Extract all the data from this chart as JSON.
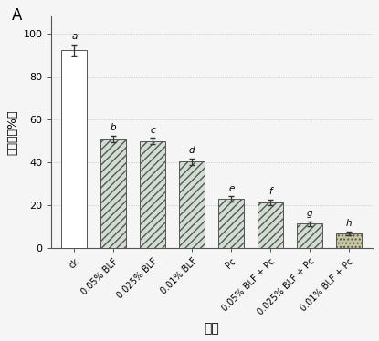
{
  "categories": [
    "ck",
    "0.05% BLF",
    "0.025% BLF",
    "0.01% BLF",
    "Pc",
    "0.05% BLF + Pc",
    "0.025% BLF + Pc",
    "0.01% BLF + Pc"
  ],
  "values": [
    92.5,
    51.0,
    50.0,
    40.5,
    23.0,
    21.5,
    11.5,
    7.0
  ],
  "errors": [
    2.5,
    1.5,
    1.5,
    1.5,
    1.2,
    1.2,
    1.0,
    0.8
  ],
  "sig_labels": [
    "a",
    "b",
    "c",
    "d",
    "e",
    "f",
    "g",
    "h"
  ],
  "bar_face_colors": [
    "white",
    "#d0ddd0",
    "#d0ddd0",
    "#d0ddd0",
    "#d0ddd0",
    "#d0ddd0",
    "#d0ddd0",
    "#c8c8a0"
  ],
  "hatch_patterns": [
    "",
    "////",
    "////",
    "////",
    "////",
    "////",
    "////",
    "...."
  ],
  "edge_color": "#555555",
  "ylabel": "腐烂率（%）",
  "xlabel": "处理",
  "panel_label": "A",
  "ylim": [
    0,
    108
  ],
  "yticks": [
    0,
    20,
    40,
    60,
    80,
    100
  ],
  "bg_color": "#f5f5f5",
  "dot_grid_color": "#bbbbbb",
  "spine_color": "#555555",
  "bar_width": 0.65,
  "fig_bg": "#f5f5f5"
}
